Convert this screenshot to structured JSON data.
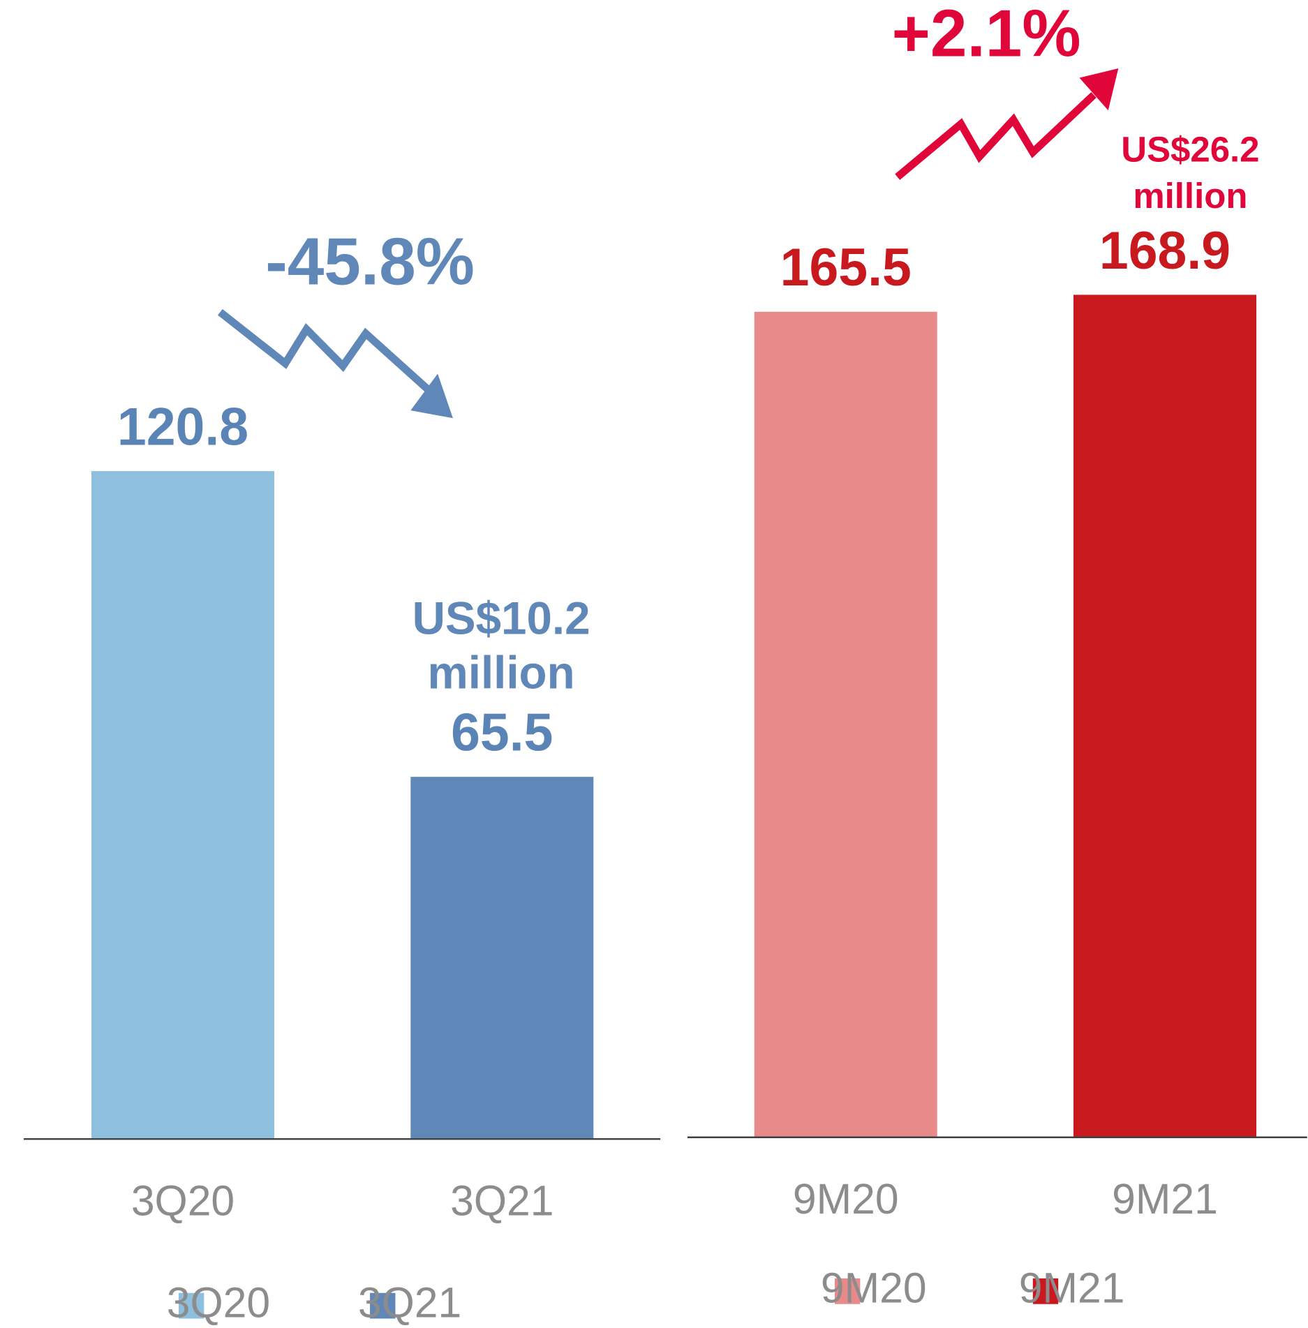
{
  "chart_data": [
    {
      "type": "bar",
      "categories": [
        "3Q20",
        "3Q21"
      ],
      "values": [
        120.8,
        65.5
      ],
      "colors": [
        "#8fbfdf",
        "#5f88b8"
      ],
      "label_color": "#5b84b6",
      "ylim": [
        0,
        206
      ],
      "legend": "bottom",
      "change_label": "-45.8%",
      "note_lines": [
        "US$10.2",
        "million"
      ]
    },
    {
      "type": "bar",
      "categories": [
        "9M20",
        "9M21"
      ],
      "values": [
        165.5,
        168.9
      ],
      "colors": [
        "#e8898a",
        "#c8191f"
      ],
      "label_color": "#c8191f",
      "ylim": [
        0,
        228
      ],
      "legend": "bottom",
      "change_label": "+2.1%",
      "note_lines": [
        "US$26.2",
        "million"
      ]
    }
  ]
}
